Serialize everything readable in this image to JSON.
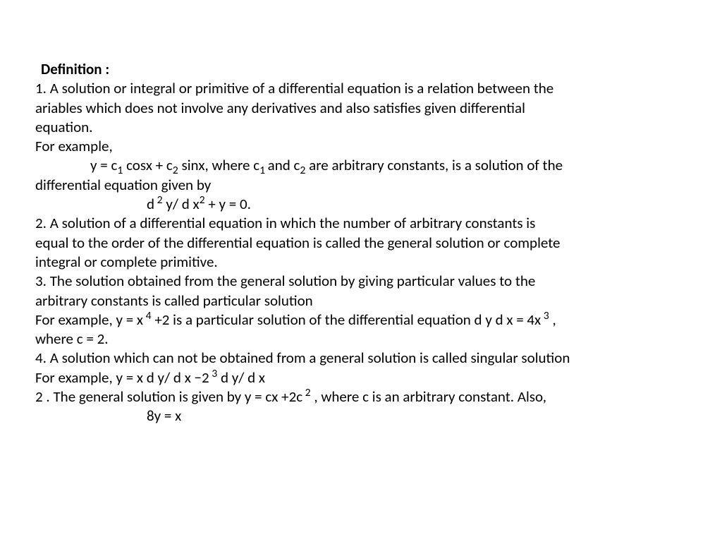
{
  "text_color": "#000000",
  "background_color": "#ffffff",
  "font_family": "Calibri, Arial, sans-serif",
  "font_size": 21,
  "heading": "Definition :",
  "para1_line1": "    1. A solution or integral or primitive of a differential equation is a relation between the",
  "para1_line2": "ariables which does not involve any derivatives and also satisfies given differential",
  "para1_line3": "equation.",
  "for_example_1": "For example,",
  "eq1_pre": "y = c",
  "eq1_sub1": "1",
  "eq1_mid1": " cosx + c",
  "eq1_sub2": "2",
  "eq1_mid2": " sinx, where c",
  "eq1_sub3": "1 ",
  "eq1_mid3": "and c",
  "eq1_sub4": "2",
  "eq1_end": " are arbitrary constants, is a solution of the",
  "eq1_line2": "differential equation given by",
  "eq2_pre": "d",
  "eq2_sup1": " 2",
  "eq2_mid": " y/ d x",
  "eq2_sup2": "2",
  "eq2_end": " + y = 0.",
  "para2_line1": " 2. A solution of a differential equation in which the number of arbitrary constants is",
  "para2_line2": "equal to the order of the differential equation is called the general solution or complete",
  "para2_line3": "integral or complete primitive.",
  "para3_line1": " 3. The solution obtained from the general solution by giving particular values to the",
  "para3_line2": "arbitrary constants is called particular solution",
  "para4_pre": " For example, y = x",
  "para4_sup1": " 4",
  "para4_mid": " +2 is a particular solution of the differential equation d y d x = 4x",
  "para4_sup2": " 3",
  "para4_end": " ,",
  "para4_line2": "where c = 2.",
  "para5": " 4. A solution which can not be obtained from a general solution is called singular solution",
  "para6_pre": " For example, y = x d y/ d x −2",
  "para6_sup": " 3",
  "para6_end": " d y/ d x",
  "para7_pre": "2 . The general solution is given by y = cx +2c",
  "para7_sup": " 2",
  "para7_end": " , where c is an arbitrary constant. Also,",
  "para8": "8y = x"
}
